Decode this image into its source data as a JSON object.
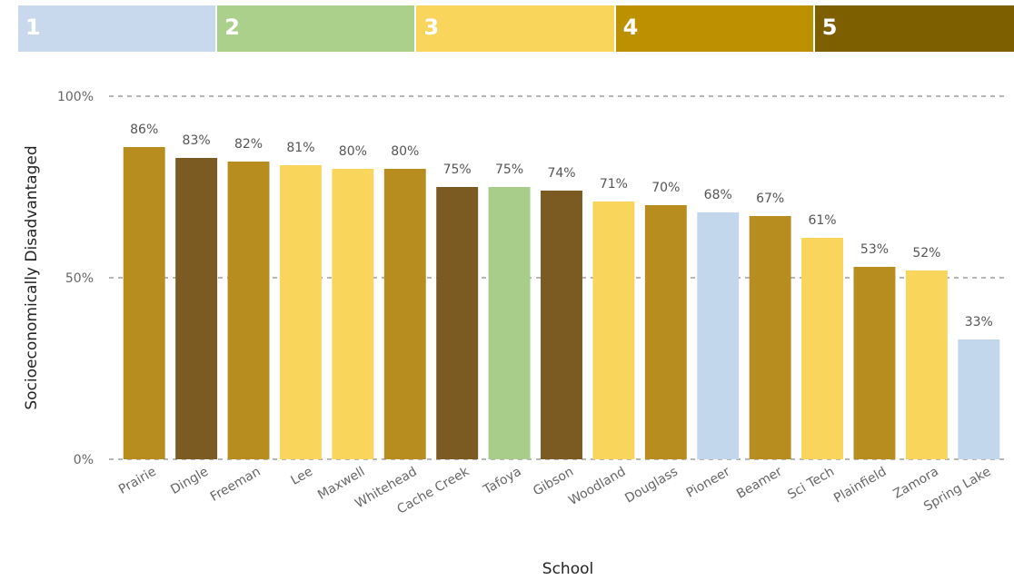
{
  "legend": [
    {
      "label": "1",
      "color": "#c8d9ee"
    },
    {
      "label": "2",
      "color": "#abd08c"
    },
    {
      "label": "3",
      "color": "#fad55c"
    },
    {
      "label": "4",
      "color": "#bc9000"
    },
    {
      "label": "5",
      "color": "#7d5f00"
    }
  ],
  "chart_data": {
    "type": "bar",
    "xlabel": "School",
    "ylabel": "Socioeconomically Disadvantaged",
    "ylim": [
      0,
      100
    ],
    "yticks": [
      "0%",
      "50%",
      "100%"
    ],
    "ytick_values": [
      0,
      50,
      100
    ],
    "grid": true,
    "categories": [
      "Prairie",
      "Dingle",
      "Freeman",
      "Lee",
      "Maxwell",
      "Whitehead",
      "Cache Creek",
      "Tafoya",
      "Gibson",
      "Woodland",
      "Douglass",
      "Pioneer",
      "Beamer",
      "Sci Tech",
      "Plainfield",
      "Zamora",
      "Spring Lake"
    ],
    "values": [
      86,
      83,
      82,
      81,
      80,
      80,
      75,
      75,
      74,
      71,
      70,
      68,
      67,
      61,
      53,
      52,
      33
    ],
    "labels": [
      "86%",
      "83%",
      "82%",
      "81%",
      "80%",
      "80%",
      "75%",
      "75%",
      "74%",
      "71%",
      "70%",
      "68%",
      "67%",
      "61%",
      "53%",
      "52%",
      "33%"
    ],
    "groups": [
      4,
      5,
      4,
      3,
      3,
      4,
      5,
      2,
      5,
      3,
      4,
      1,
      4,
      3,
      4,
      3,
      1
    ],
    "group_colors": {
      "1": "#c3d7ec",
      "2": "#a8cc8a",
      "3": "#fad55c",
      "4": "#b78d1f",
      "5": "#7b5b21"
    }
  }
}
